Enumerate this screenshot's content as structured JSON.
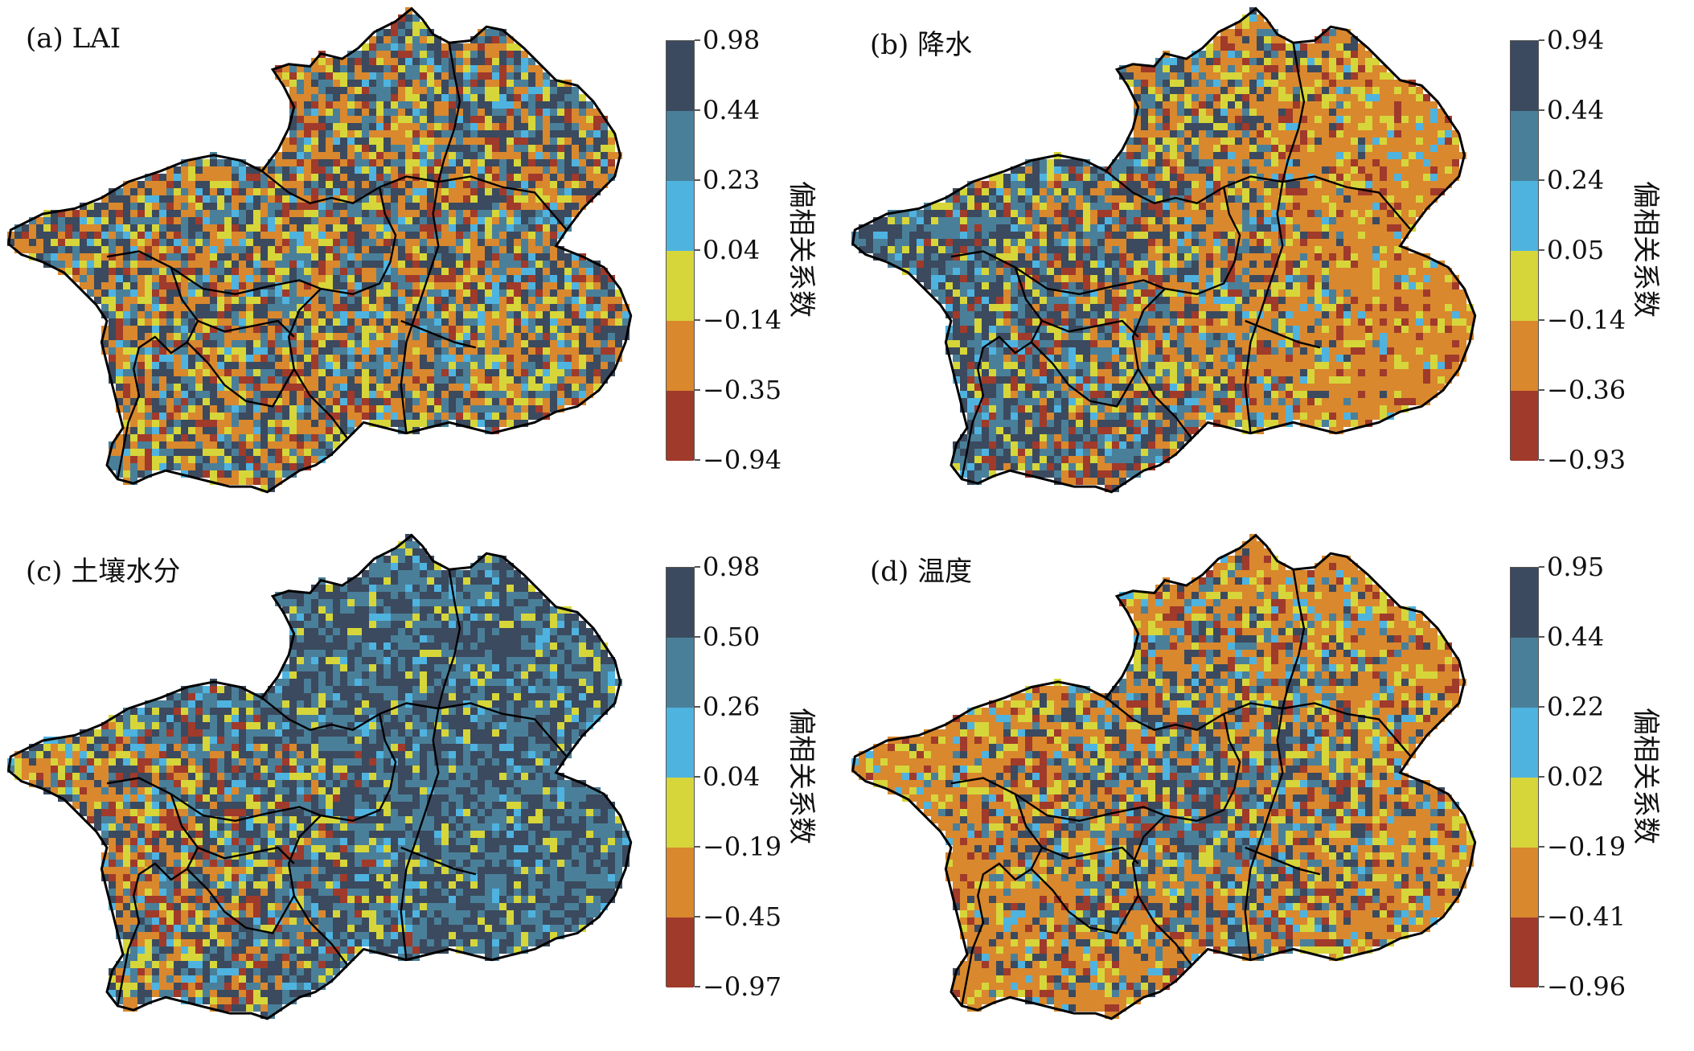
{
  "figure": {
    "legend_title": "偏相关系数",
    "colors": [
      "#3b4a5e",
      "#4a7f99",
      "#4fb3e0",
      "#d6d63a",
      "#d9882e",
      "#a03a2a"
    ],
    "map_palette_note": "mosaic of same six colors",
    "panels": [
      {
        "label": "(a) LAI",
        "ticks": [
          "0.98",
          "0.44",
          "0.23",
          "0.04",
          "−0.14",
          "−0.35",
          "−0.94"
        ],
        "dominant": "mixed"
      },
      {
        "label": "(b) 降水",
        "ticks": [
          "0.94",
          "0.44",
          "0.24",
          "0.05",
          "−0.14",
          "−0.36",
          "−0.93"
        ],
        "dominant": "blue-west-red-east"
      },
      {
        "label": "(c) 土壤水分",
        "ticks": [
          "0.98",
          "0.50",
          "0.26",
          "0.04",
          "−0.19",
          "−0.45",
          "−0.97"
        ],
        "dominant": "blue-north-red-west"
      },
      {
        "label": "(d) 温度",
        "ticks": [
          "0.95",
          "0.44",
          "0.22",
          "0.02",
          "−0.19",
          "−0.41",
          "−0.96"
        ],
        "dominant": "red-west-blue-center"
      }
    ]
  }
}
